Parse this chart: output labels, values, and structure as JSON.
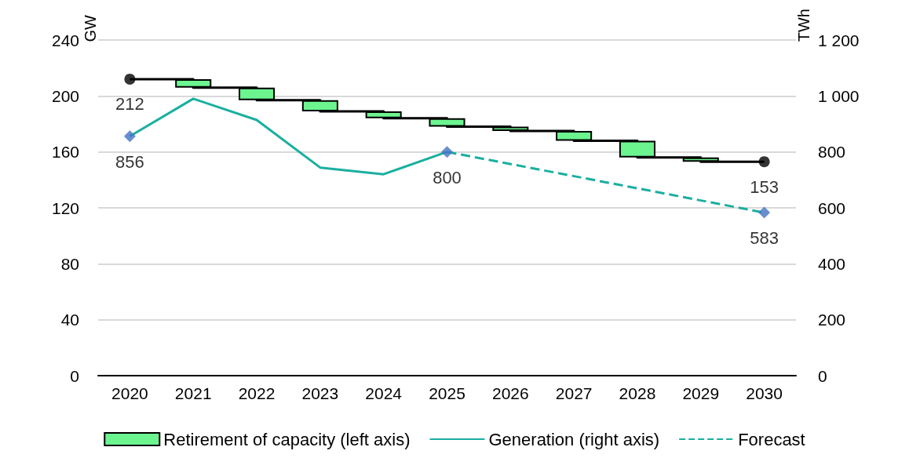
{
  "chart_data": {
    "type": "bar",
    "ylabel": "GW",
    "y2label": "TWh",
    "categories": [
      "2020",
      "2021",
      "2022",
      "2023",
      "2024",
      "2025",
      "2026",
      "2027",
      "2028",
      "2029",
      "2030"
    ],
    "ylim": [
      0,
      240
    ],
    "yticks": [
      0,
      40,
      80,
      120,
      160,
      200,
      240
    ],
    "y2lim": [
      0,
      1200
    ],
    "y2ticks": [
      0,
      200,
      400,
      600,
      800,
      {
        "value": 1000,
        "label": "1 000"
      },
      {
        "value": 1200,
        "label": "1 200"
      }
    ],
    "grid": "y",
    "legend": "bottom",
    "series": [
      {
        "name": "Retirement of capacity (left axis)",
        "color": "#6cf58f",
        "base": [
          null,
          206,
          197,
          189,
          184,
          178,
          175,
          168,
          156,
          153,
          null
        ],
        "values": [
          null,
          6,
          9,
          8,
          5,
          6,
          3,
          7,
          12,
          3,
          null
        ]
      },
      {
        "type": "step",
        "color": "#000000",
        "marker": "none",
        "values": [
          212,
          206,
          197,
          189,
          184,
          178,
          175,
          168,
          156,
          153,
          153
        ]
      },
      {
        "type": "scatter",
        "color": "#000000",
        "marker": "circle",
        "data_labels": true,
        "values": [
          212,
          null,
          null,
          null,
          null,
          null,
          null,
          null,
          null,
          null,
          153
        ]
      },
      {
        "type": "line",
        "name": "Generation (right axis)",
        "color": "#1aafa0",
        "axis": "y2",
        "marker": "none",
        "line_style": "solid",
        "values": [
          856,
          990,
          914,
          744,
          720,
          800,
          null,
          null,
          null,
          null,
          null
        ]
      },
      {
        "type": "line",
        "name": "Forecast",
        "color": "#1aafa0",
        "axis": "y2",
        "marker": "none",
        "line_style": "dashed",
        "values": [
          null,
          null,
          null,
          null,
          null,
          800,
          null,
          null,
          null,
          null,
          583
        ]
      },
      {
        "type": "scatter",
        "color": "#4472c4",
        "axis": "y2",
        "marker": "diamond",
        "data_labels": true,
        "values": [
          856,
          null,
          null,
          null,
          null,
          800,
          null,
          null,
          null,
          null,
          583
        ]
      }
    ]
  }
}
